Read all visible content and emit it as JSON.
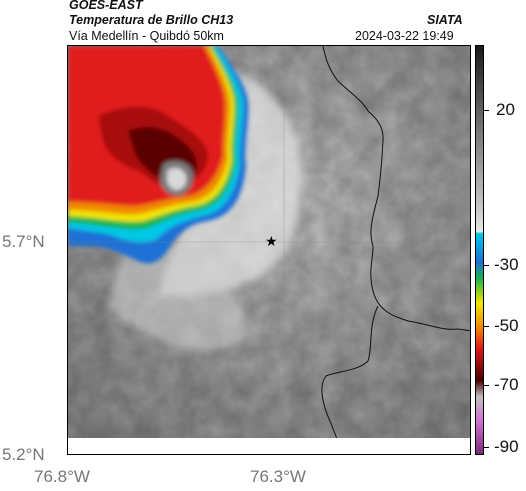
{
  "header": {
    "title_line1": "GOES-EAST",
    "title_line2": "Temperatura de Brillo CH13",
    "source": "SIATA",
    "subtitle": "Vía Medellín - Quibdó 50km",
    "datetime": "2024-03-22 19:49"
  },
  "axes": {
    "y_ticks": [
      "5.7°N",
      "5.2°N"
    ],
    "x_ticks": [
      "76.8°W",
      "76.3°W"
    ]
  },
  "colorbar": {
    "ticks": [
      "20",
      "-30",
      "-50",
      "-70",
      "-90"
    ],
    "colors": {
      "warm_top": "#1a1a1a",
      "gray": "#9a9a9a",
      "cyan": "#00c8e6",
      "blue": "#1f6fd6",
      "green": "#19b34a",
      "yellow": "#f2e600",
      "orange": "#f08a00",
      "red": "#e11a1a",
      "darkred": "#4a0000",
      "magenta": "#d070d0"
    }
  },
  "map": {
    "marker_icon": "star-icon"
  }
}
